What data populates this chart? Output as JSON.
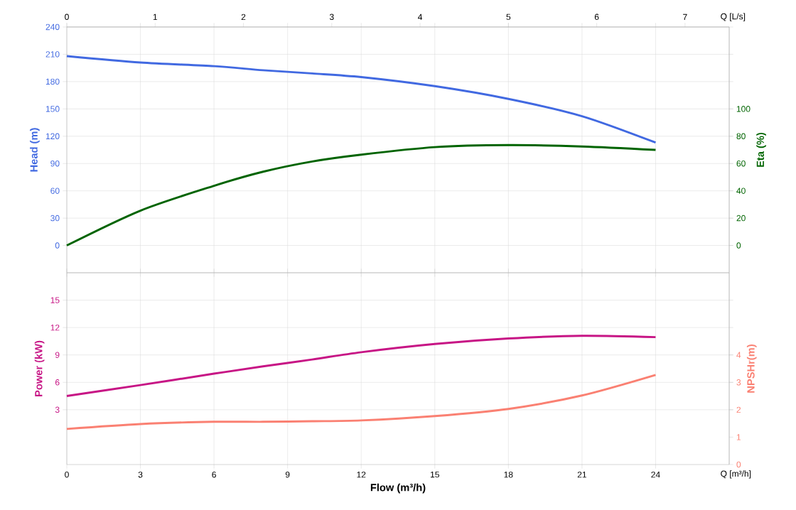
{
  "chart_data": [
    {
      "type": "line",
      "xlim": [
        0,
        27
      ],
      "xticks": [
        0,
        3,
        6,
        9,
        12,
        15,
        18,
        21,
        24
      ],
      "x2lim": [
        0,
        7.5
      ],
      "x2ticks": [
        0,
        1,
        2,
        3,
        4,
        5,
        6,
        7
      ],
      "x2label": "Q [L/s]",
      "ylabel": "Head (m)",
      "ylim": [
        -30,
        240
      ],
      "yticks": [
        0,
        30,
        60,
        90,
        120,
        150,
        180,
        210,
        240
      ],
      "y2label": "Eta (%)",
      "y2lim": [
        -20,
        160
      ],
      "y2ticks": [
        0,
        20,
        40,
        60,
        80,
        100
      ],
      "grid": true,
      "tick_labels": "y",
      "marker": "none",
      "x": [
        0,
        3,
        6,
        8,
        10,
        12,
        15,
        18,
        21,
        24
      ],
      "series": [
        {
          "color": "#4169e1",
          "values": [
            208,
            201,
            197,
            192.5,
            189,
            185,
            175,
            161,
            142,
            113
          ]
        },
        {
          "color": "#006400",
          "axis": "y2",
          "values": [
            0,
            25.5,
            43.7,
            54,
            61.5,
            66.5,
            72,
            73.5,
            72.5,
            70
          ]
        }
      ]
    },
    {
      "type": "line",
      "xlim": [
        0,
        27
      ],
      "xticks": [
        0,
        3,
        6,
        9,
        12,
        15,
        18,
        21,
        24
      ],
      "xlabel": "Flow (m³/h)",
      "annotations": [
        "Q [m³/h]"
      ],
      "ylabel": "Power (kW)",
      "ylim": [
        -3,
        18
      ],
      "yticks": [
        3,
        6,
        9,
        12,
        15
      ],
      "y2label": "NPSHr(m)",
      "y2lim": [
        0,
        7
      ],
      "y2ticks": [
        0,
        1,
        2,
        3,
        4
      ],
      "grid": true,
      "marker": "none",
      "x": [
        0,
        3,
        6,
        8,
        10,
        12,
        15,
        18,
        21,
        24
      ],
      "series": [
        {
          "color": "#c71585",
          "values": [
            4.5,
            5.7,
            6.95,
            7.75,
            8.5,
            9.3,
            10.2,
            10.8,
            11.1,
            10.95
          ]
        },
        {
          "color": "#fa8072",
          "axis": "y2",
          "values": [
            1.3,
            1.48,
            1.56,
            1.56,
            1.58,
            1.61,
            1.77,
            2.03,
            2.52,
            3.27
          ]
        }
      ]
    }
  ]
}
